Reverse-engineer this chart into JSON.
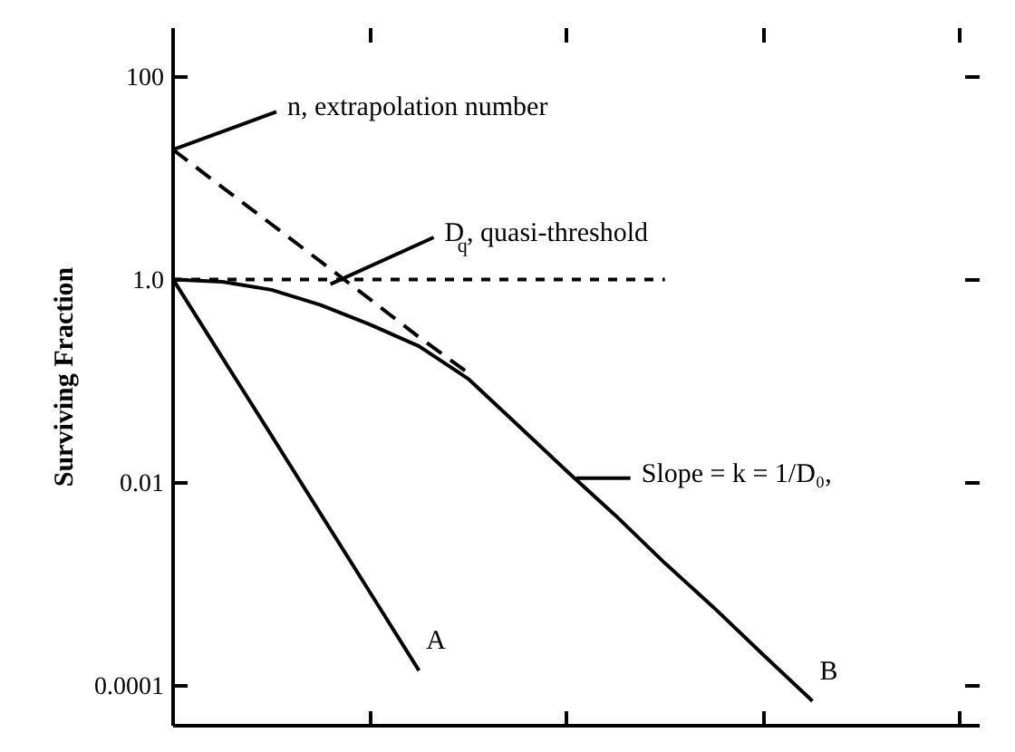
{
  "chart_data": {
    "type": "line",
    "ylabel": "Surviving Fraction",
    "log": "y",
    "grid": false,
    "marker": "none",
    "categories": [
      null,
      null,
      null,
      null,
      null,
      null,
      null,
      null,
      null,
      null,
      null,
      null,
      null,
      null,
      null,
      null,
      null
    ],
    "ylim": [
      4e-05,
      300
    ],
    "yticks": [
      {
        "value": 100,
        "label": "100"
      },
      {
        "value": 1,
        "label": "1.0"
      },
      {
        "value": 0.01,
        "label": "0.01"
      },
      {
        "value": 0.0001,
        "label": "0.0001"
      }
    ],
    "tick_labels": "y",
    "series": [
      {
        "name": "A",
        "color": "#000000",
        "line_style": "solid",
        "values": [
          1,
          0.17,
          0.029,
          0.0049,
          0.00083,
          0.00014,
          null,
          null,
          null,
          null,
          null,
          null,
          null,
          null,
          null,
          null,
          null
        ]
      },
      {
        "name": "B",
        "color": "#000000",
        "line_style": "solid",
        "values": [
          1,
          0.95,
          0.79,
          0.56,
          0.36,
          0.22,
          0.105,
          0.037,
          0.013,
          0.0047,
          0.0016,
          0.00058,
          0.0002,
          7e-05,
          null,
          null,
          null
        ]
      },
      {
        "color": "#000000",
        "line_style": "dashed",
        "values": [
          19,
          8.1,
          3.5,
          1.5,
          0.64,
          0.27,
          0.12,
          null,
          null,
          null,
          null,
          null,
          null,
          null,
          null,
          null,
          null
        ]
      },
      {
        "color": "#000000",
        "line_style": "dotted",
        "values": [
          1,
          1,
          1,
          1,
          1,
          1,
          1,
          1,
          1,
          1,
          1,
          null,
          null,
          null,
          null,
          null,
          null
        ]
      }
    ],
    "annotations": [
      "n, extrapolation number",
      "D$_{q}$, quasi-threshold",
      "Slope = k = 1/D₀,"
    ]
  }
}
